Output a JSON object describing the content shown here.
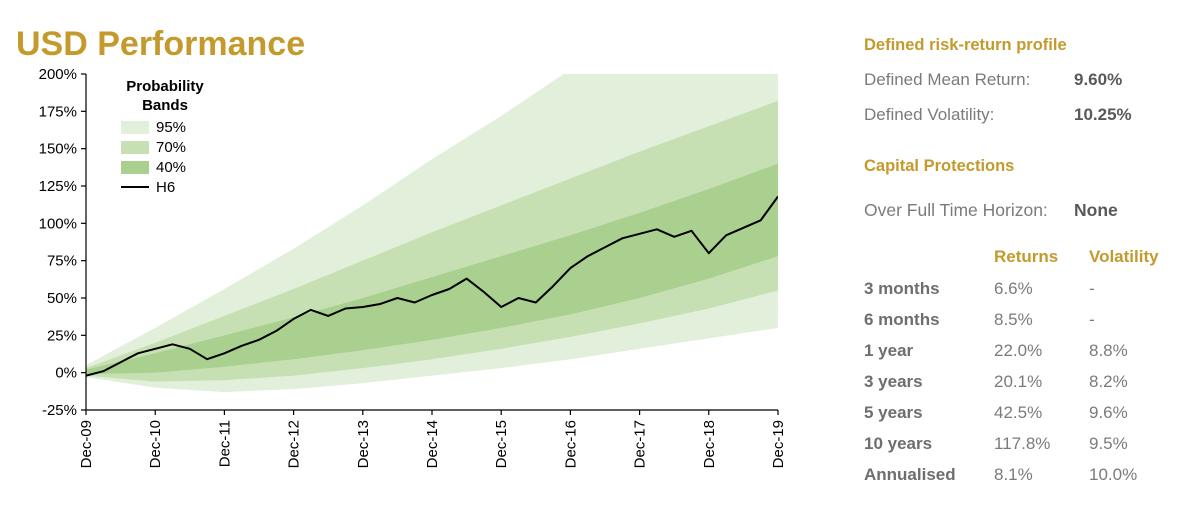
{
  "page_title": "USD Performance",
  "colors": {
    "gold": "#C39A2B",
    "band95": "#E2EFDA",
    "band70": "#C6E0B4",
    "band40": "#A9D08E",
    "line": "#000000",
    "label_grey": "#7B7B7B",
    "value_grey": "#595959"
  },
  "chart_data": {
    "type": "area",
    "title": "USD Performance probability fan chart",
    "x_axis": {
      "tick_labels": [
        "Dec-09",
        "Dec-10",
        "Dec-11",
        "Dec-12",
        "Dec-13",
        "Dec-14",
        "Dec-15",
        "Dec-16",
        "Dec-17",
        "Dec-18",
        "Dec-19"
      ],
      "t_years": [
        0,
        1,
        2,
        3,
        4,
        5,
        6,
        7,
        8,
        9,
        10
      ]
    },
    "y_axis": {
      "tick_values": [
        -25,
        0,
        25,
        50,
        75,
        100,
        125,
        150,
        175,
        200
      ],
      "tick_labels": [
        "-25%",
        "0%",
        "25%",
        "50%",
        "75%",
        "100%",
        "125%",
        "150%",
        "175%",
        "200%"
      ],
      "ylim": [
        -25,
        200
      ],
      "grid": false,
      "unit": "%"
    },
    "legend": {
      "title": "Probability Bands",
      "position": "top-left-inside",
      "entries": [
        {
          "label": "95%",
          "swatch": "band95"
        },
        {
          "label": "70%",
          "swatch": "band70"
        },
        {
          "label": "40%",
          "swatch": "band40"
        },
        {
          "label": "H6",
          "swatch": "line"
        }
      ]
    },
    "bands": [
      {
        "name": "95%",
        "color_key": "band95",
        "lower": [
          -3,
          -10,
          -13,
          -11,
          -7,
          -2,
          3,
          9,
          16,
          23,
          30
        ],
        "upper": [
          5,
          30,
          56,
          83,
          112,
          143,
          172,
          203,
          232,
          261,
          290
        ]
      },
      {
        "name": "70%",
        "color_key": "band70",
        "lower": [
          -2,
          -6,
          -5,
          -2,
          3,
          9,
          16,
          24,
          33,
          43,
          55
        ],
        "upper": [
          3,
          20,
          38,
          56,
          75,
          94,
          112,
          130,
          148,
          165,
          182
        ]
      },
      {
        "name": "40%",
        "color_key": "band40",
        "lower": [
          -1,
          0,
          4,
          9,
          15,
          22,
          30,
          39,
          50,
          63,
          78
        ],
        "upper": [
          2,
          13,
          25,
          37,
          50,
          64,
          78,
          92,
          107,
          123,
          140
        ]
      }
    ],
    "series": [
      {
        "name": "H6",
        "type": "line",
        "t_start": 0,
        "t_step": 0.25,
        "values": [
          -2,
          1,
          7,
          13,
          16,
          19,
          16,
          9,
          13,
          18,
          22,
          28,
          36,
          42,
          38,
          43,
          44,
          46,
          50,
          47,
          52,
          56,
          63,
          54,
          44,
          50,
          47,
          58,
          70,
          78,
          84,
          90,
          93,
          96,
          91,
          95,
          80,
          92,
          97,
          102,
          118
        ]
      }
    ]
  },
  "panel": {
    "risk_profile": {
      "heading": "Defined risk-return profile",
      "rows": [
        {
          "label": "Defined Mean Return:",
          "value": "9.60%"
        },
        {
          "label": "Defined Volatility:",
          "value": "10.25%"
        }
      ]
    },
    "capital": {
      "heading": "Capital Protections",
      "rows": [
        {
          "label": "Over Full Time Horizon:",
          "value": "None"
        }
      ]
    },
    "returns_table": {
      "headers": [
        "",
        "Returns",
        "Volatility"
      ],
      "rows": [
        [
          "3 months",
          "6.6%",
          "-"
        ],
        [
          "6 months",
          "8.5%",
          "-"
        ],
        [
          "1 year",
          "22.0%",
          "8.8%"
        ],
        [
          "3 years",
          "20.1%",
          "8.2%"
        ],
        [
          "5 years",
          "42.5%",
          "9.6%"
        ],
        [
          "10 years",
          "117.8%",
          "9.5%"
        ],
        [
          "Annualised",
          "8.1%",
          "10.0%"
        ]
      ]
    }
  }
}
